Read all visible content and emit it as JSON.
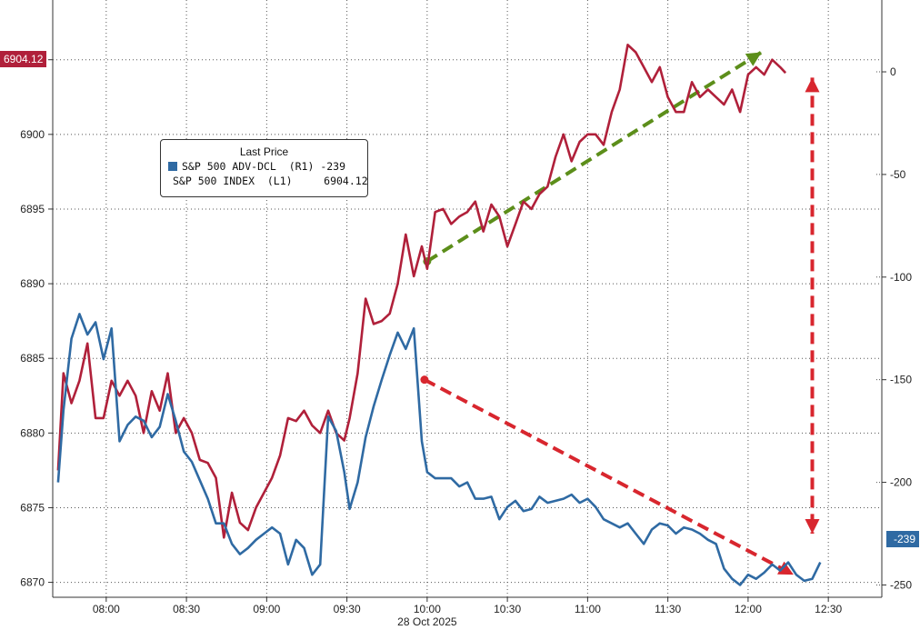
{
  "chart_data": {
    "type": "line",
    "xlabel": "28 Oct 2025",
    "x_ticks": [
      "08:00",
      "08:30",
      "09:00",
      "09:30",
      "10:00",
      "10:30",
      "11:00",
      "11:30",
      "12:00",
      "12:30"
    ],
    "left_axis": {
      "ylim": [
        6869,
        6909
      ],
      "ticks": [
        6870,
        6875,
        6880,
        6885,
        6890,
        6895,
        6900,
        6905
      ]
    },
    "right_axis": {
      "ylim": [
        -256,
        35
      ],
      "ticks": [
        0,
        -50,
        -100,
        -150,
        -200,
        -250
      ]
    },
    "grid": true,
    "legend": {
      "title": "Last Price",
      "position": "top-left",
      "entries": [
        {
          "label": "S&P 500 ADV-DCL  (R1) -239",
          "color": "#2f6aa3"
        },
        {
          "label": "S&P 500 INDEX  (L1)     6904.12",
          "color": "#b0203a"
        }
      ]
    },
    "last_value_labels": {
      "left": "6904.12",
      "right": "-239"
    },
    "series": [
      {
        "name": "S&P 500 INDEX",
        "axis": "left",
        "color": "#b0203a",
        "x": [
          "07:42",
          "07:44",
          "07:47",
          "07:50",
          "07:53",
          "07:56",
          "07:59",
          "08:02",
          "08:05",
          "08:08",
          "08:11",
          "08:14",
          "08:17",
          "08:20",
          "08:23",
          "08:26",
          "08:29",
          "08:32",
          "08:35",
          "08:38",
          "08:41",
          "08:44",
          "08:47",
          "08:50",
          "08:53",
          "08:56",
          "08:59",
          "09:02",
          "09:05",
          "09:08",
          "09:11",
          "09:14",
          "09:17",
          "09:20",
          "09:23",
          "09:26",
          "09:29",
          "09:31",
          "09:34",
          "09:37",
          "09:40",
          "09:43",
          "09:46",
          "09:49",
          "09:52",
          "09:55",
          "09:58",
          "10:00",
          "10:03",
          "10:06",
          "10:09",
          "10:12",
          "10:15",
          "10:18",
          "10:21",
          "10:24",
          "10:27",
          "10:30",
          "10:33",
          "10:36",
          "10:39",
          "10:42",
          "10:45",
          "10:48",
          "10:51",
          "10:54",
          "10:57",
          "11:00",
          "11:03",
          "11:06",
          "11:09",
          "11:12",
          "11:15",
          "11:18",
          "11:21",
          "11:24",
          "11:27",
          "11:30",
          "11:33",
          "11:36",
          "11:39",
          "11:42",
          "11:45",
          "11:48",
          "11:51",
          "11:54",
          "11:57",
          "12:00",
          "12:03",
          "12:06",
          "12:09",
          "12:12",
          "12:14"
        ],
        "values": [
          6877.5,
          6884.0,
          6882.0,
          6883.5,
          6886.0,
          6881.0,
          6881.0,
          6883.5,
          6882.5,
          6883.5,
          6882.5,
          6880.0,
          6882.8,
          6881.5,
          6884.0,
          6880.0,
          6881.0,
          6880.0,
          6878.2,
          6878.0,
          6877.0,
          6873.0,
          6876.0,
          6874.0,
          6873.5,
          6875.0,
          6876.0,
          6877.0,
          6878.5,
          6881.0,
          6880.8,
          6881.5,
          6880.5,
          6880.0,
          6881.5,
          6880.0,
          6879.5,
          6881.0,
          6884.0,
          6889.0,
          6887.3,
          6887.5,
          6888.0,
          6890.0,
          6893.3,
          6890.5,
          6892.5,
          6891.0,
          6894.8,
          6895.0,
          6894.0,
          6894.5,
          6894.8,
          6895.5,
          6893.5,
          6895.3,
          6894.5,
          6892.5,
          6894.0,
          6895.5,
          6895.0,
          6896.0,
          6896.5,
          6898.5,
          6900.0,
          6898.2,
          6899.5,
          6900.0,
          6900.0,
          6899.3,
          6901.5,
          6903.0,
          6906.0,
          6905.5,
          6904.5,
          6903.5,
          6904.5,
          6902.5,
          6901.5,
          6901.5,
          6903.5,
          6902.5,
          6903.0,
          6902.5,
          6902.0,
          6903.0,
          6901.5,
          6904.0,
          6904.5,
          6904.0,
          6905.0,
          6904.5,
          6904.12
        ]
      },
      {
        "name": "S&P 500 ADV-DCL",
        "axis": "right",
        "color": "#2f6aa3",
        "x": [
          "07:42",
          "07:44",
          "07:47",
          "07:50",
          "07:53",
          "07:56",
          "07:59",
          "08:02",
          "08:05",
          "08:08",
          "08:11",
          "08:14",
          "08:17",
          "08:20",
          "08:23",
          "08:26",
          "08:29",
          "08:32",
          "08:35",
          "08:38",
          "08:41",
          "08:44",
          "08:47",
          "08:50",
          "08:53",
          "08:56",
          "08:59",
          "09:02",
          "09:05",
          "09:08",
          "09:11",
          "09:14",
          "09:17",
          "09:20",
          "09:23",
          "09:26",
          "09:29",
          "09:31",
          "09:34",
          "09:37",
          "09:40",
          "09:43",
          "09:46",
          "09:49",
          "09:52",
          "09:55",
          "09:58",
          "10:00",
          "10:03",
          "10:06",
          "10:09",
          "10:12",
          "10:15",
          "10:18",
          "10:21",
          "10:24",
          "10:27",
          "10:30",
          "10:33",
          "10:36",
          "10:39",
          "10:42",
          "10:45",
          "10:48",
          "10:51",
          "10:54",
          "10:57",
          "11:00",
          "11:03",
          "11:06",
          "11:09",
          "11:12",
          "11:15",
          "11:18",
          "11:21",
          "11:24",
          "11:27",
          "11:30",
          "11:33",
          "11:36",
          "11:39",
          "11:42",
          "11:45",
          "11:48",
          "11:51",
          "11:54",
          "11:57",
          "12:00",
          "12:03",
          "12:06",
          "12:09",
          "12:12",
          "12:15",
          "12:18",
          "12:21",
          "12:24",
          "12:27"
        ],
        "values": [
          -200,
          -165,
          -130,
          -118,
          -128,
          -122,
          -140,
          -125,
          -180,
          -172,
          -168,
          -170,
          -178,
          -173,
          -157,
          -170,
          -185,
          -190,
          -199,
          -208,
          -220,
          -220,
          -230,
          -235,
          -232,
          -228,
          -225,
          -222,
          -225,
          -240,
          -228,
          -232,
          -245,
          -240,
          -168,
          -175,
          -195,
          -213,
          -200,
          -178,
          -163,
          -150,
          -138,
          -127,
          -135,
          -125,
          -180,
          -195,
          -198,
          -198,
          -198,
          -202,
          -200,
          -208,
          -208,
          -207,
          -218,
          -212,
          -209,
          -214,
          -213,
          -207,
          -210,
          -209,
          -208,
          -206,
          -210,
          -208,
          -212,
          -218,
          -220,
          -222,
          -220,
          -225,
          -230,
          -223,
          -220,
          -221,
          -225,
          -222,
          -223,
          -225,
          -228,
          -230,
          -242,
          -247,
          -250,
          -245,
          -247,
          -244,
          -240,
          -243,
          -239,
          -245,
          -248,
          -247,
          -239
        ]
      }
    ]
  }
}
